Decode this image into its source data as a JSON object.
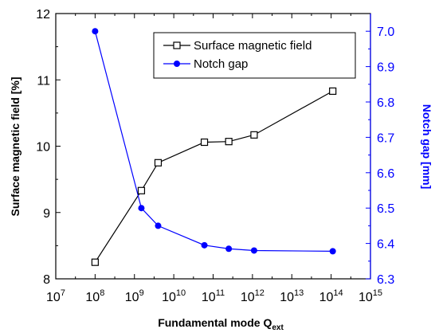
{
  "chart_data": {
    "type": "line",
    "x_scale": "log",
    "xlabel": {
      "main": "Fundamental mode Q",
      "sub": "ext"
    },
    "ylabel_left": "Surface magnetic field [%]",
    "ylabel_right": "Notch gap [mm]",
    "xlim": [
      10000000,
      1000000000000000
    ],
    "ylim_left": [
      8,
      12
    ],
    "ylim_right": [
      6.3,
      7.05
    ],
    "x_ticks": [
      {
        "base": "10",
        "exp": "7",
        "value": 10000000
      },
      {
        "base": "10",
        "exp": "8",
        "value": 100000000
      },
      {
        "base": "10",
        "exp": "9",
        "value": 1000000000
      },
      {
        "base": "10",
        "exp": "10",
        "value": 10000000000
      },
      {
        "base": "10",
        "exp": "11",
        "value": 100000000000
      },
      {
        "base": "10",
        "exp": "12",
        "value": 1000000000000
      },
      {
        "base": "10",
        "exp": "13",
        "value": 10000000000000
      },
      {
        "base": "10",
        "exp": "14",
        "value": 100000000000000
      },
      {
        "base": "10",
        "exp": "15",
        "value": 1000000000000000
      }
    ],
    "y_ticks_left": [
      "8",
      "9",
      "10",
      "11",
      "12"
    ],
    "y_ticks_right": [
      "6.3",
      "6.4",
      "6.5",
      "6.6",
      "6.7",
      "6.8",
      "6.9",
      "7.0"
    ],
    "legend_position": "top-right",
    "colors": {
      "surface": "#000000",
      "notch": "#0000ff",
      "right_axis": "#0000ff"
    },
    "series": [
      {
        "name": "Surface magnetic field",
        "axis": "left",
        "marker": "open-square",
        "x": [
          100000000,
          1500000000,
          4000000000,
          60000000000,
          250000000000,
          1100000000000,
          110000000000000
        ],
        "y": [
          8.25,
          9.33,
          9.75,
          10.06,
          10.07,
          10.17,
          10.83
        ]
      },
      {
        "name": "Notch gap",
        "axis": "right",
        "marker": "filled-circle",
        "x": [
          100000000,
          1500000000,
          4000000000,
          60000000000,
          250000000000,
          1100000000000,
          110000000000000
        ],
        "y": [
          7.0,
          6.5,
          6.45,
          6.395,
          6.385,
          6.38,
          6.378
        ]
      }
    ]
  }
}
